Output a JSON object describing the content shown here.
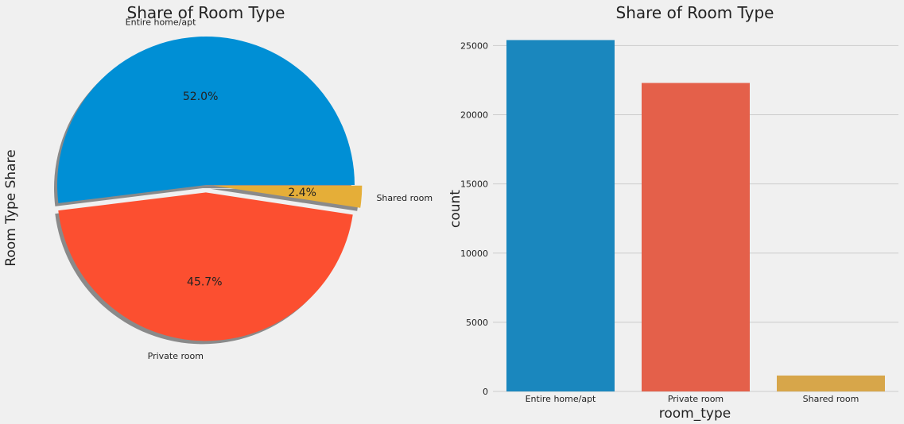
{
  "chart_data": [
    {
      "type": "pie",
      "title": "Share of Room Type",
      "ylabel": "Room Type Share",
      "categories": [
        "Entire home/apt",
        "Private room",
        "Shared room"
      ],
      "values": [
        52.0,
        45.7,
        2.4
      ],
      "value_labels": [
        "52.0%",
        "45.7%",
        "2.4%"
      ],
      "colors": [
        "#008fd5",
        "#fc4f30",
        "#e5ae38"
      ],
      "explode": [
        0,
        0.05,
        0.05
      ],
      "shadow": true
    },
    {
      "type": "bar",
      "title": "Share of Room Type",
      "xlabel": "room_type",
      "ylabel": "count",
      "categories": [
        "Entire home/apt",
        "Private room",
        "Shared room"
      ],
      "values": [
        25400,
        22300,
        1150
      ],
      "colors": [
        "#1a87be",
        "#e4604a",
        "#d7a64a"
      ],
      "ylim": [
        0,
        26000
      ],
      "yticks": [
        0,
        5000,
        10000,
        15000,
        20000,
        25000
      ],
      "ytick_labels": [
        "0",
        "5000",
        "10000",
        "15000",
        "20000",
        "25000"
      ],
      "grid": "horizontal"
    }
  ]
}
